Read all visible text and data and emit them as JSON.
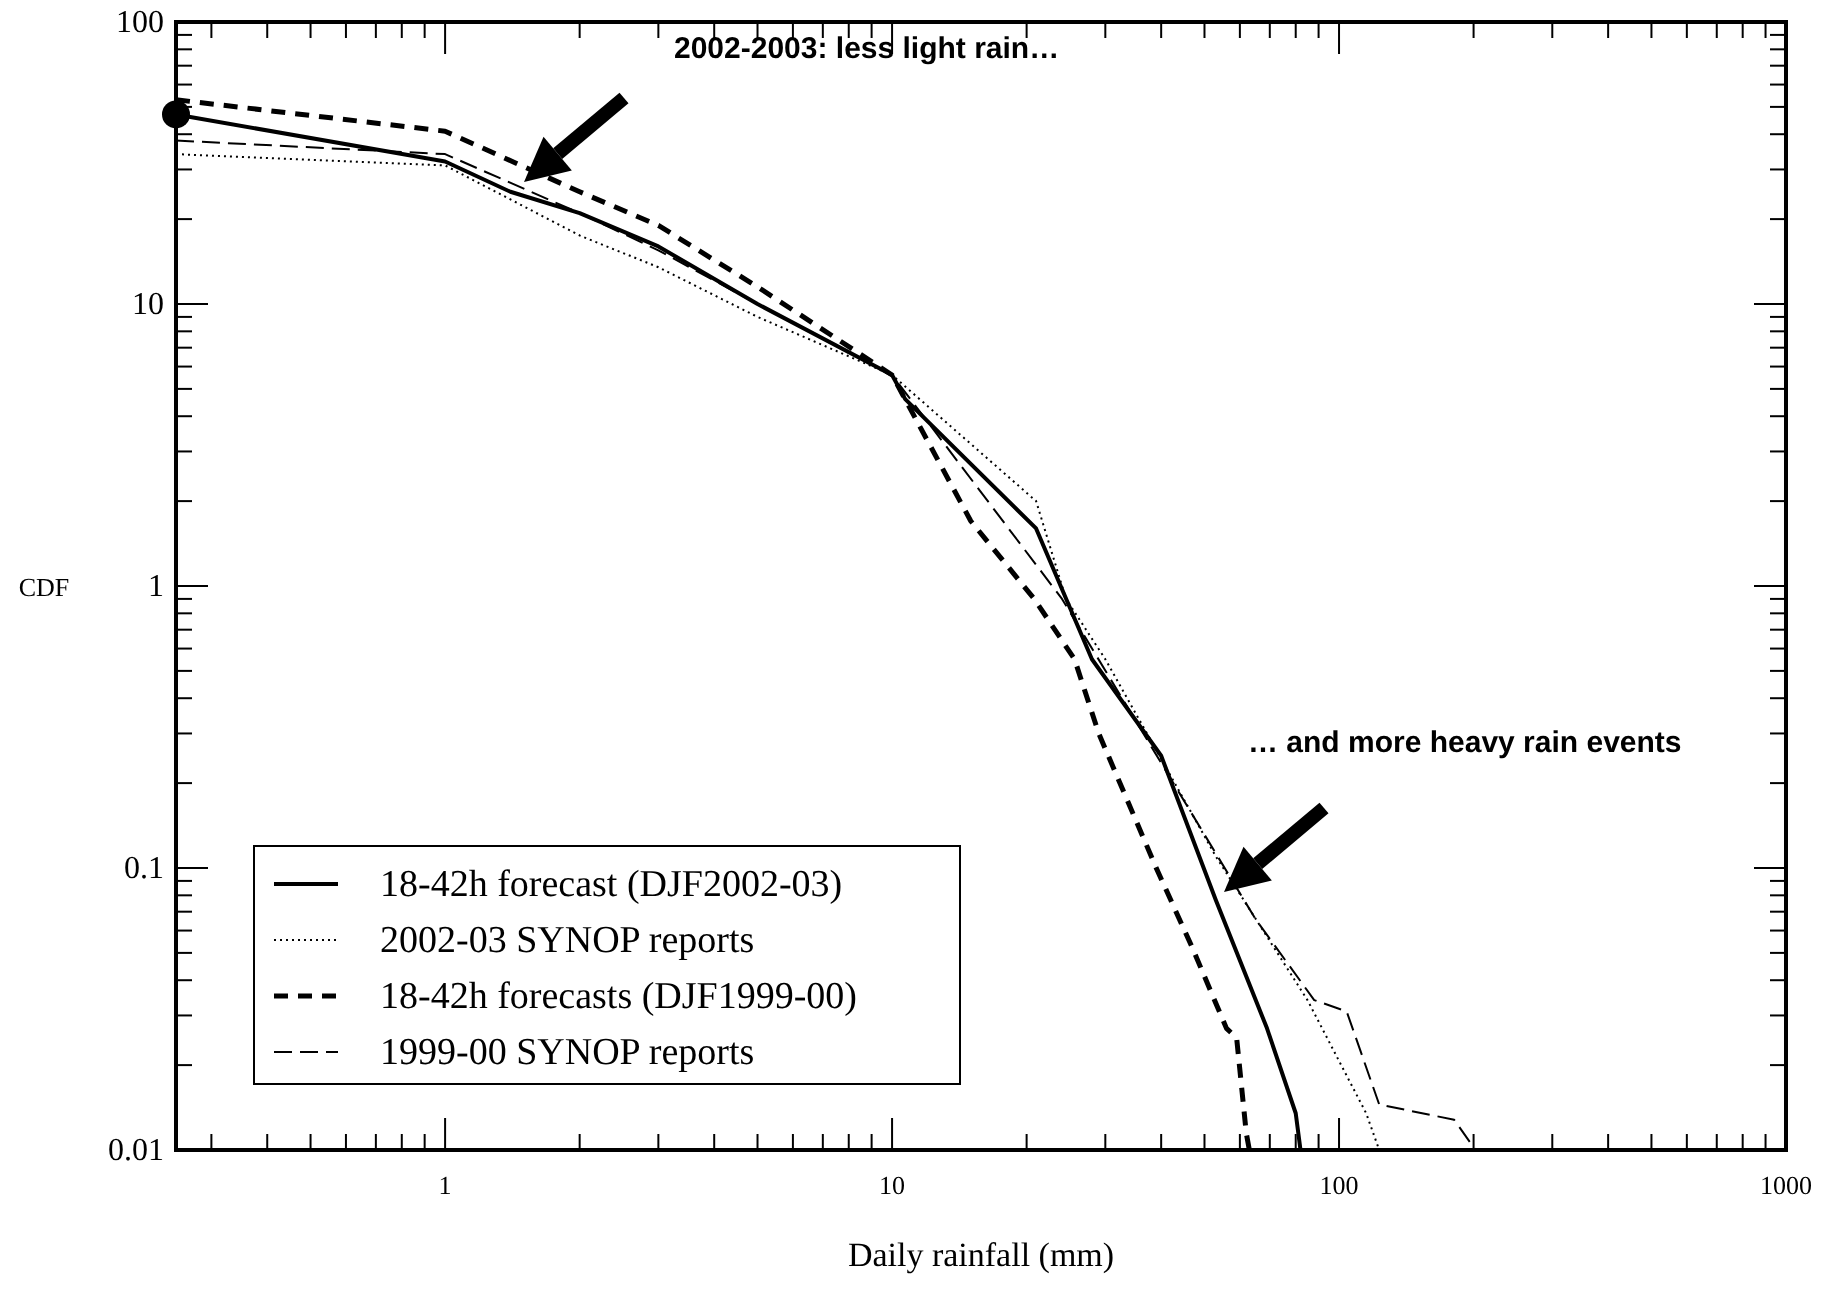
{
  "chart_data": {
    "type": "line",
    "xlabel": "Daily rainfall (mm)",
    "ylabel": "CDF",
    "log": "xy",
    "grid": false,
    "legend": "bottom left",
    "xlim": [
      0.25,
      1000
    ],
    "ylim": [
      0.01,
      100
    ],
    "xticks": [
      {
        "value": 0.3,
        "label": null
      },
      {
        "value": 0.4,
        "label": null
      },
      {
        "value": 0.5,
        "label": null
      },
      {
        "value": 0.6,
        "label": null
      },
      {
        "value": 0.7,
        "label": null
      },
      {
        "value": 0.8,
        "label": null
      },
      {
        "value": 0.9,
        "label": null
      },
      1,
      {
        "value": 2,
        "label": null
      },
      {
        "value": 3,
        "label": null
      },
      {
        "value": 4,
        "label": null
      },
      {
        "value": 5,
        "label": null
      },
      {
        "value": 6,
        "label": null
      },
      {
        "value": 7,
        "label": null
      },
      {
        "value": 8,
        "label": null
      },
      {
        "value": 9,
        "label": null
      },
      10,
      {
        "value": 20,
        "label": null
      },
      {
        "value": 30,
        "label": null
      },
      {
        "value": 40,
        "label": null
      },
      {
        "value": 50,
        "label": null
      },
      {
        "value": 60,
        "label": null
      },
      {
        "value": 70,
        "label": null
      },
      {
        "value": 80,
        "label": null
      },
      {
        "value": 90,
        "label": null
      },
      100,
      {
        "value": 200,
        "label": null
      },
      {
        "value": 300,
        "label": null
      },
      {
        "value": 400,
        "label": null
      },
      {
        "value": 500,
        "label": null
      },
      {
        "value": 600,
        "label": null
      },
      {
        "value": 700,
        "label": null
      },
      {
        "value": 800,
        "label": null
      },
      {
        "value": 900,
        "label": null
      },
      1000
    ],
    "yticks": [
      0.01,
      {
        "value": 0.02,
        "label": null
      },
      {
        "value": 0.03,
        "label": null
      },
      {
        "value": 0.04,
        "label": null
      },
      {
        "value": 0.05,
        "label": null
      },
      {
        "value": 0.06,
        "label": null
      },
      {
        "value": 0.07,
        "label": null
      },
      {
        "value": 0.08,
        "label": null
      },
      {
        "value": 0.09,
        "label": null
      },
      0.1,
      {
        "value": 0.2,
        "label": null
      },
      {
        "value": 0.3,
        "label": null
      },
      {
        "value": 0.4,
        "label": null
      },
      {
        "value": 0.5,
        "label": null
      },
      {
        "value": 0.6,
        "label": null
      },
      {
        "value": 0.7,
        "label": null
      },
      {
        "value": 0.8,
        "label": null
      },
      {
        "value": 0.9,
        "label": null
      },
      1,
      {
        "value": 2,
        "label": null
      },
      {
        "value": 3,
        "label": null
      },
      {
        "value": 4,
        "label": null
      },
      {
        "value": 5,
        "label": null
      },
      {
        "value": 6,
        "label": null
      },
      {
        "value": 7,
        "label": null
      },
      {
        "value": 8,
        "label": null
      },
      {
        "value": 9,
        "label": null
      },
      10,
      {
        "value": 20,
        "label": null
      },
      {
        "value": 30,
        "label": null
      },
      {
        "value": 40,
        "label": null
      },
      {
        "value": 50,
        "label": null
      },
      {
        "value": 60,
        "label": null
      },
      {
        "value": 70,
        "label": null
      },
      {
        "value": 80,
        "label": null
      },
      {
        "value": 90,
        "label": null
      },
      100
    ],
    "series": [
      {
        "name": "18-42h forecast (DJF2002-03)",
        "color": "#000000",
        "line_style": "solid",
        "x": [
          0.25,
          1,
          1.4,
          2,
          3,
          5,
          10,
          10.7,
          21,
          28,
          40,
          53,
          69,
          80,
          82
        ],
        "values": [
          47,
          32,
          25,
          21,
          16,
          10,
          5.6,
          4.6,
          1.6,
          0.55,
          0.25,
          0.077,
          0.027,
          0.0135,
          0.01
        ]
      },
      {
        "name": "2002-03 SYNOP reports",
        "color": "#000000",
        "line_style": "dotted",
        "x": [
          0.25,
          1,
          2,
          3,
          5,
          10,
          21,
          24.5,
          30,
          53,
          85,
          115,
          123
        ],
        "values": [
          34,
          31,
          17.5,
          13.5,
          9,
          5.6,
          2,
          0.9,
          0.55,
          0.11,
          0.034,
          0.0135,
          0.01
        ]
      },
      {
        "name": "18-42h forecasts (DJF1999-00)",
        "color": "#000000",
        "line_style": "dashed",
        "x": [
          0.25,
          1,
          2,
          3,
          5,
          10,
          15,
          20.8,
          25.6,
          29,
          39,
          47,
          56,
          59,
          62,
          63
        ],
        "values": [
          53,
          41,
          25,
          19,
          11.5,
          5.6,
          1.7,
          0.9,
          0.55,
          0.3,
          0.1,
          0.052,
          0.027,
          0.025,
          0.0115,
          0.01
        ]
      },
      {
        "name": "1999-00  SYNOP reports",
        "color": "#000000",
        "line_style": "dashed",
        "x": [
          0.25,
          1,
          2,
          3,
          5,
          10,
          24,
          65,
          88,
          104,
          123,
          181,
          202
        ],
        "values": [
          38,
          34,
          21,
          15.5,
          10,
          5.6,
          0.9,
          0.066,
          0.034,
          0.031,
          0.0145,
          0.0128,
          0.01
        ]
      },
      {
        "type": "scatter",
        "color": "#000000",
        "marker": "circle",
        "x": [
          0.25
        ],
        "values": [
          47
        ]
      }
    ],
    "annotations": [
      "2002-2003: less light rain…",
      "… and more heavy rain events"
    ]
  }
}
